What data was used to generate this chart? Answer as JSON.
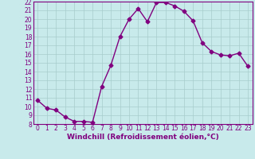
{
  "xlabel": "Windchill (Refroidissement éolien,°C)",
  "x": [
    0,
    1,
    2,
    3,
    4,
    5,
    6,
    7,
    8,
    9,
    10,
    11,
    12,
    13,
    14,
    15,
    16,
    17,
    18,
    19,
    20,
    21,
    22,
    23
  ],
  "y": [
    10.7,
    9.8,
    9.6,
    8.8,
    8.3,
    8.3,
    8.2,
    12.3,
    14.7,
    18.0,
    20.0,
    21.2,
    19.7,
    21.9,
    21.9,
    21.5,
    20.9,
    19.8,
    17.3,
    16.3,
    15.9,
    15.8,
    16.1,
    14.6
  ],
  "line_color": "#800080",
  "marker_color": "#800080",
  "bg_color": "#c8eaea",
  "grid_color": "#a8cccc",
  "ylim": [
    8,
    22
  ],
  "xlim": [
    -0.5,
    23.5
  ],
  "yticks": [
    8,
    9,
    10,
    11,
    12,
    13,
    14,
    15,
    16,
    17,
    18,
    19,
    20,
    21,
    22
  ],
  "xticks": [
    0,
    1,
    2,
    3,
    4,
    5,
    6,
    7,
    8,
    9,
    10,
    11,
    12,
    13,
    14,
    15,
    16,
    17,
    18,
    19,
    20,
    21,
    22,
    23
  ],
  "tick_fontsize": 5.5,
  "xlabel_fontsize": 6.5,
  "marker": "D",
  "marker_size": 2.5,
  "line_width": 1.0
}
